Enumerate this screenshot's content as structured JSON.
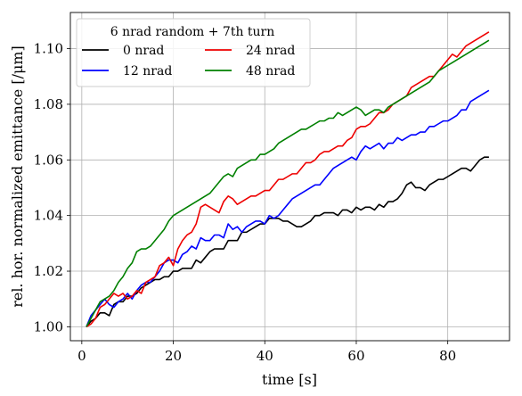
{
  "chart_data": {
    "type": "line",
    "title": "",
    "xlabel": "time [s]",
    "ylabel": "rel. hor. normalized emittance [/μm]",
    "xlim": [
      -2.5,
      93.5
    ],
    "ylim": [
      0.995,
      1.113
    ],
    "xticks": [
      0,
      20,
      40,
      60,
      80
    ],
    "yticks": [
      1.0,
      1.02,
      1.04,
      1.06,
      1.08,
      1.1
    ],
    "xtick_labels": [
      "0",
      "20",
      "40",
      "60",
      "80"
    ],
    "ytick_labels": [
      "1.00",
      "1.02",
      "1.04",
      "1.06",
      "1.08",
      "1.10"
    ],
    "grid": true,
    "legend": {
      "title": "6 nrad random + 7th turn",
      "placement": "top-left",
      "columns": 2
    },
    "series": [
      {
        "name": "0 nrad",
        "color": "#000000",
        "x": [
          1,
          2,
          3,
          4,
          5,
          6,
          7,
          8,
          9,
          10,
          11,
          12,
          13,
          14,
          15,
          16,
          17,
          18,
          19,
          20,
          21,
          22,
          23,
          24,
          25,
          26,
          27,
          28,
          29,
          30,
          31,
          32,
          33,
          34,
          35,
          36,
          37,
          38,
          39,
          40,
          41,
          42,
          43,
          44,
          45,
          46,
          47,
          48,
          49,
          50,
          51,
          52,
          53,
          54,
          55,
          56,
          57,
          58,
          59,
          60,
          61,
          62,
          63,
          64,
          65,
          66,
          67,
          68,
          69,
          70,
          71,
          72,
          73,
          74,
          75,
          76,
          77,
          78,
          79,
          80,
          81,
          82,
          83,
          84,
          85,
          86,
          87,
          88,
          89
        ],
        "y": [
          1.0,
          1.002,
          1.003,
          1.005,
          1.005,
          1.004,
          1.008,
          1.009,
          1.009,
          1.011,
          1.011,
          1.012,
          1.014,
          1.015,
          1.016,
          1.017,
          1.017,
          1.018,
          1.018,
          1.02,
          1.02,
          1.021,
          1.021,
          1.021,
          1.024,
          1.023,
          1.025,
          1.027,
          1.028,
          1.028,
          1.028,
          1.031,
          1.031,
          1.031,
          1.034,
          1.034,
          1.035,
          1.036,
          1.037,
          1.037,
          1.039,
          1.039,
          1.039,
          1.038,
          1.038,
          1.037,
          1.036,
          1.036,
          1.037,
          1.038,
          1.04,
          1.04,
          1.041,
          1.041,
          1.041,
          1.04,
          1.042,
          1.042,
          1.041,
          1.043,
          1.042,
          1.043,
          1.043,
          1.042,
          1.044,
          1.043,
          1.045,
          1.045,
          1.046,
          1.048,
          1.051,
          1.052,
          1.05,
          1.05,
          1.049,
          1.051,
          1.052,
          1.053,
          1.053,
          1.054,
          1.055,
          1.056,
          1.057,
          1.057,
          1.056,
          1.058,
          1.06,
          1.061,
          1.061
        ]
      },
      {
        "name": "12 nrad",
        "color": "#0000ff",
        "x": [
          1,
          2,
          3,
          4,
          5,
          6,
          7,
          8,
          9,
          10,
          11,
          12,
          13,
          14,
          15,
          16,
          17,
          18,
          19,
          20,
          21,
          22,
          23,
          24,
          25,
          26,
          27,
          28,
          29,
          30,
          31,
          32,
          33,
          34,
          35,
          36,
          37,
          38,
          39,
          40,
          41,
          42,
          43,
          44,
          45,
          46,
          47,
          48,
          49,
          50,
          51,
          52,
          53,
          54,
          55,
          56,
          57,
          58,
          59,
          60,
          61,
          62,
          63,
          64,
          65,
          66,
          67,
          68,
          69,
          70,
          71,
          72,
          73,
          74,
          75,
          76,
          77,
          78,
          79,
          80,
          81,
          82,
          83,
          84,
          85,
          86,
          87,
          88,
          89
        ],
        "y": [
          1.0,
          1.004,
          1.006,
          1.008,
          1.01,
          1.008,
          1.007,
          1.009,
          1.01,
          1.012,
          1.01,
          1.013,
          1.015,
          1.016,
          1.016,
          1.018,
          1.02,
          1.023,
          1.024,
          1.024,
          1.023,
          1.026,
          1.027,
          1.029,
          1.028,
          1.032,
          1.031,
          1.031,
          1.033,
          1.033,
          1.032,
          1.037,
          1.035,
          1.036,
          1.034,
          1.036,
          1.037,
          1.038,
          1.038,
          1.037,
          1.04,
          1.039,
          1.04,
          1.042,
          1.044,
          1.046,
          1.047,
          1.048,
          1.049,
          1.05,
          1.051,
          1.051,
          1.053,
          1.055,
          1.057,
          1.058,
          1.059,
          1.06,
          1.061,
          1.06,
          1.063,
          1.065,
          1.064,
          1.065,
          1.066,
          1.064,
          1.066,
          1.066,
          1.068,
          1.067,
          1.068,
          1.069,
          1.069,
          1.07,
          1.07,
          1.072,
          1.072,
          1.073,
          1.074,
          1.074,
          1.075,
          1.076,
          1.078,
          1.078,
          1.081,
          1.082,
          1.083,
          1.084,
          1.085
        ]
      },
      {
        "name": "24 nrad",
        "color": "#ee0000",
        "x": [
          1,
          2,
          3,
          4,
          5,
          6,
          7,
          8,
          9,
          10,
          11,
          12,
          13,
          14,
          15,
          16,
          17,
          18,
          19,
          20,
          21,
          22,
          23,
          24,
          25,
          26,
          27,
          28,
          29,
          30,
          31,
          32,
          33,
          34,
          35,
          36,
          37,
          38,
          39,
          40,
          41,
          42,
          43,
          44,
          45,
          46,
          47,
          48,
          49,
          50,
          51,
          52,
          53,
          54,
          55,
          56,
          57,
          58,
          59,
          60,
          61,
          62,
          63,
          64,
          65,
          66,
          67,
          68,
          69,
          70,
          71,
          72,
          73,
          74,
          75,
          76,
          77,
          78,
          79,
          80,
          81,
          82,
          83,
          84,
          85,
          86,
          87,
          88,
          89
        ],
        "y": [
          1.0,
          1.001,
          1.003,
          1.007,
          1.008,
          1.01,
          1.012,
          1.011,
          1.012,
          1.01,
          1.011,
          1.013,
          1.012,
          1.016,
          1.017,
          1.018,
          1.022,
          1.023,
          1.025,
          1.022,
          1.028,
          1.031,
          1.033,
          1.034,
          1.037,
          1.043,
          1.044,
          1.043,
          1.042,
          1.041,
          1.045,
          1.047,
          1.046,
          1.044,
          1.045,
          1.046,
          1.047,
          1.047,
          1.048,
          1.049,
          1.049,
          1.051,
          1.053,
          1.053,
          1.054,
          1.055,
          1.055,
          1.057,
          1.059,
          1.059,
          1.06,
          1.062,
          1.063,
          1.063,
          1.064,
          1.065,
          1.065,
          1.067,
          1.068,
          1.071,
          1.072,
          1.072,
          1.073,
          1.075,
          1.077,
          1.077,
          1.078,
          1.08,
          1.081,
          1.082,
          1.083,
          1.086,
          1.087,
          1.088,
          1.089,
          1.09,
          1.09,
          1.092,
          1.094,
          1.096,
          1.098,
          1.097,
          1.099,
          1.101,
          1.102,
          1.103,
          1.104,
          1.105,
          1.106
        ]
      },
      {
        "name": "48 nrad",
        "color": "#008000",
        "x": [
          1,
          2,
          3,
          4,
          5,
          6,
          7,
          8,
          9,
          10,
          11,
          12,
          13,
          14,
          15,
          16,
          17,
          18,
          19,
          20,
          21,
          22,
          23,
          24,
          25,
          26,
          27,
          28,
          29,
          30,
          31,
          32,
          33,
          34,
          35,
          36,
          37,
          38,
          39,
          40,
          41,
          42,
          43,
          44,
          45,
          46,
          47,
          48,
          49,
          50,
          51,
          52,
          53,
          54,
          55,
          56,
          57,
          58,
          59,
          60,
          61,
          62,
          63,
          64,
          65,
          66,
          67,
          68,
          69,
          70,
          71,
          72,
          73,
          74,
          75,
          76,
          77,
          78,
          79,
          80,
          81,
          82,
          83,
          84,
          85,
          86,
          87,
          88,
          89
        ],
        "y": [
          1.0,
          1.003,
          1.006,
          1.009,
          1.01,
          1.011,
          1.013,
          1.016,
          1.018,
          1.021,
          1.023,
          1.027,
          1.028,
          1.028,
          1.029,
          1.031,
          1.033,
          1.035,
          1.038,
          1.04,
          1.041,
          1.042,
          1.043,
          1.044,
          1.045,
          1.046,
          1.047,
          1.048,
          1.05,
          1.052,
          1.054,
          1.055,
          1.054,
          1.057,
          1.058,
          1.059,
          1.06,
          1.06,
          1.062,
          1.062,
          1.063,
          1.064,
          1.066,
          1.067,
          1.068,
          1.069,
          1.07,
          1.071,
          1.071,
          1.072,
          1.073,
          1.074,
          1.074,
          1.075,
          1.075,
          1.077,
          1.076,
          1.077,
          1.078,
          1.079,
          1.078,
          1.076,
          1.077,
          1.078,
          1.078,
          1.077,
          1.079,
          1.08,
          1.081,
          1.082,
          1.083,
          1.084,
          1.085,
          1.086,
          1.087,
          1.088,
          1.09,
          1.092,
          1.093,
          1.094,
          1.095,
          1.096,
          1.097,
          1.098,
          1.099,
          1.1,
          1.101,
          1.102,
          1.103
        ]
      }
    ]
  }
}
